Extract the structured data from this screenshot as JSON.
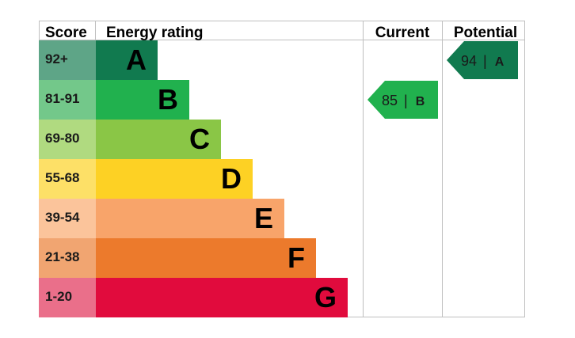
{
  "headers": {
    "score": "Score",
    "energy_rating": "Energy rating",
    "current": "Current",
    "potential": "Potential"
  },
  "chart_data": {
    "type": "bar",
    "title": "",
    "bands": [
      {
        "letter": "A",
        "range": "92+",
        "color": "#117a4f",
        "score_bg": "#5ea587"
      },
      {
        "letter": "B",
        "range": "81-91",
        "color": "#21b14e",
        "score_bg": "#73c88a"
      },
      {
        "letter": "C",
        "range": "69-80",
        "color": "#8ac646",
        "score_bg": "#b0da80"
      },
      {
        "letter": "D",
        "range": "55-68",
        "color": "#fdd124",
        "score_bg": "#fde067"
      },
      {
        "letter": "E",
        "range": "39-54",
        "color": "#f8a46a",
        "score_bg": "#fbc49b"
      },
      {
        "letter": "F",
        "range": "21-38",
        "color": "#ec7a2c",
        "score_bg": "#f1a571"
      },
      {
        "letter": "G",
        "range": "1-20",
        "color": "#e10b3d",
        "score_bg": "#ea6f8a"
      }
    ],
    "current": {
      "value": 85,
      "band": "B",
      "separator": "|",
      "color": "#21b14e"
    },
    "potential": {
      "value": 94,
      "band": "A",
      "separator": "|",
      "color": "#117a4f"
    }
  }
}
